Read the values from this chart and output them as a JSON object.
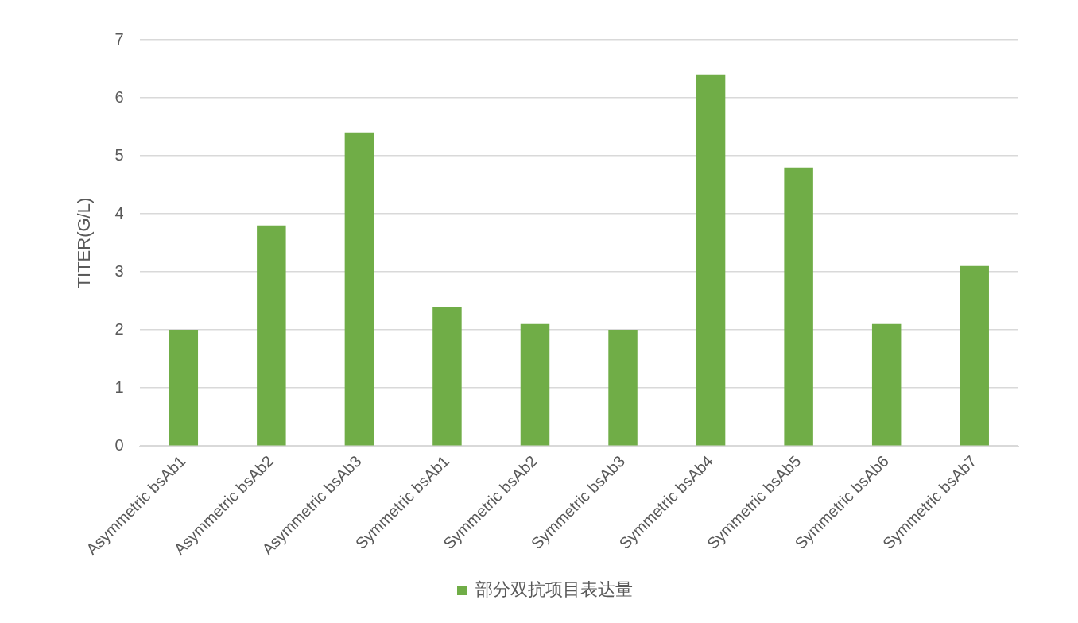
{
  "chart_data": {
    "type": "bar",
    "ylabel": "TITER(G/L)",
    "categories": [
      "Asymmetric bsAb1",
      "Asymmetric bsAb2",
      "Asymmetric bsAb3",
      "Symmetric bsAb1",
      "Symmetric bsAb2",
      "Symmetric bsAb3",
      "Symmetric bsAb4",
      "Symmetric bsAb5",
      "Symmetric bsAb6",
      "Symmetric bsAb7"
    ],
    "series": [
      {
        "name": "部分双抗项目表达量",
        "color": "#70ad47",
        "values": [
          2.0,
          3.8,
          5.4,
          2.4,
          2.1,
          2.0,
          6.4,
          4.8,
          2.1,
          3.1
        ]
      }
    ],
    "ylim": [
      0,
      7
    ],
    "yticks": [
      0,
      1,
      2,
      3,
      4,
      5,
      6,
      7
    ],
    "grid": "y",
    "legend": "bottom"
  }
}
